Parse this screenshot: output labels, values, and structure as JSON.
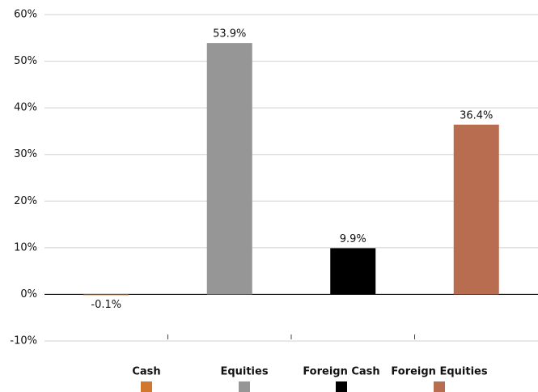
{
  "chart_data": {
    "type": "bar",
    "categories": [
      "Cash",
      "Equities",
      "Foreign Cash",
      "Foreign Equities"
    ],
    "values": [
      -0.1,
      53.9,
      9.9,
      36.4
    ],
    "value_labels": [
      "-0.1%",
      "53.9%",
      "9.9%",
      "36.4%"
    ],
    "colors": [
      "#d2782e",
      "#969696",
      "#000000",
      "#b86c50"
    ],
    "ylim": [
      -10,
      60
    ],
    "yticks": [
      {
        "value": -10,
        "label": "-10%"
      },
      {
        "value": 0,
        "label": "0%"
      },
      {
        "value": 10,
        "label": "10%"
      },
      {
        "value": 20,
        "label": "20%"
      },
      {
        "value": 30,
        "label": "30%"
      },
      {
        "value": 40,
        "label": "40%"
      },
      {
        "value": 50,
        "label": "50%"
      },
      {
        "value": 60,
        "label": "60%"
      }
    ],
    "grid": true,
    "legend": "bottom"
  }
}
